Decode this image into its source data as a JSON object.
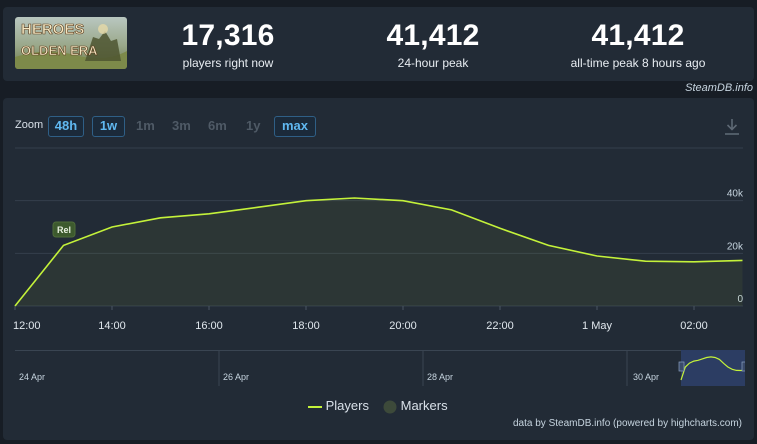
{
  "stats": [
    {
      "value": "17,316",
      "label": "players right now"
    },
    {
      "value": "41,412",
      "label": "24-hour peak"
    },
    {
      "value": "41,412",
      "label": "all-time peak 8 hours ago"
    }
  ],
  "game": {
    "logo_line1": "HEROES",
    "logo_line2": "OLDEN ERA"
  },
  "credit": "SteamDB.info",
  "zoom": {
    "label": "Zoom",
    "buttons": [
      {
        "label": "48h",
        "active": true
      },
      {
        "label": "1w",
        "active": true
      },
      {
        "label": "1m",
        "active": false
      },
      {
        "label": "3m",
        "active": false
      },
      {
        "label": "6m",
        "active": false
      },
      {
        "label": "1y",
        "active": false
      },
      {
        "label": "max",
        "active": true
      }
    ]
  },
  "chart_data": {
    "type": "area",
    "x": [
      "12:00",
      "13:00",
      "14:00",
      "15:00",
      "16:00",
      "17:00",
      "18:00",
      "19:00",
      "20:00",
      "21:00",
      "22:00",
      "23:00",
      "00:00",
      "01:00",
      "02:00",
      "03:00"
    ],
    "series": [
      {
        "name": "Players",
        "values": [
          0,
          23000,
          30000,
          33500,
          35000,
          37500,
          40000,
          41000,
          40000,
          36500,
          29500,
          23000,
          19000,
          17000,
          16800,
          17300
        ],
        "color": "#c4f23a"
      }
    ],
    "x_ticks": [
      "12:00",
      "14:00",
      "16:00",
      "18:00",
      "20:00",
      "22:00",
      "1 May",
      "02:00"
    ],
    "y_ticks": [
      "0",
      "20k",
      "40k"
    ],
    "ylim": [
      0,
      60000
    ],
    "marker": {
      "label": "Rel"
    },
    "navigator_labels": [
      "24 Apr",
      "26 Apr",
      "28 Apr",
      "30 Apr"
    ],
    "legend": [
      "Players",
      "Markers"
    ],
    "grid": true
  },
  "footer": "data by SteamDB.info (powered by highcharts.com)"
}
